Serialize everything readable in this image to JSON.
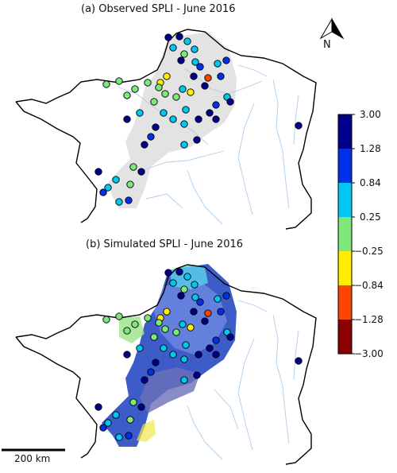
{
  "panels": [
    {
      "title": "(a) Observed SPLI - June 2016"
    },
    {
      "title": "(b) Simulated SPLI - June 2016"
    }
  ],
  "north_arrow": {
    "label": "N"
  },
  "scale_bar": {
    "label": "200 km"
  },
  "colorbar": {
    "ticks": [
      "3.00",
      "1.28",
      "0.84",
      "0.25",
      "−0.25",
      "−0.84",
      "−1.28",
      "−3.00"
    ],
    "colors": [
      "#00008b",
      "#0030e8",
      "#00c8f0",
      "#7ee87a",
      "#ffee00",
      "#ff4400",
      "#8b0000"
    ]
  },
  "colors": {
    "coastline": "#000000",
    "rivers": "#a9cdee",
    "observed_domain": "#e3e3e3"
  }
}
